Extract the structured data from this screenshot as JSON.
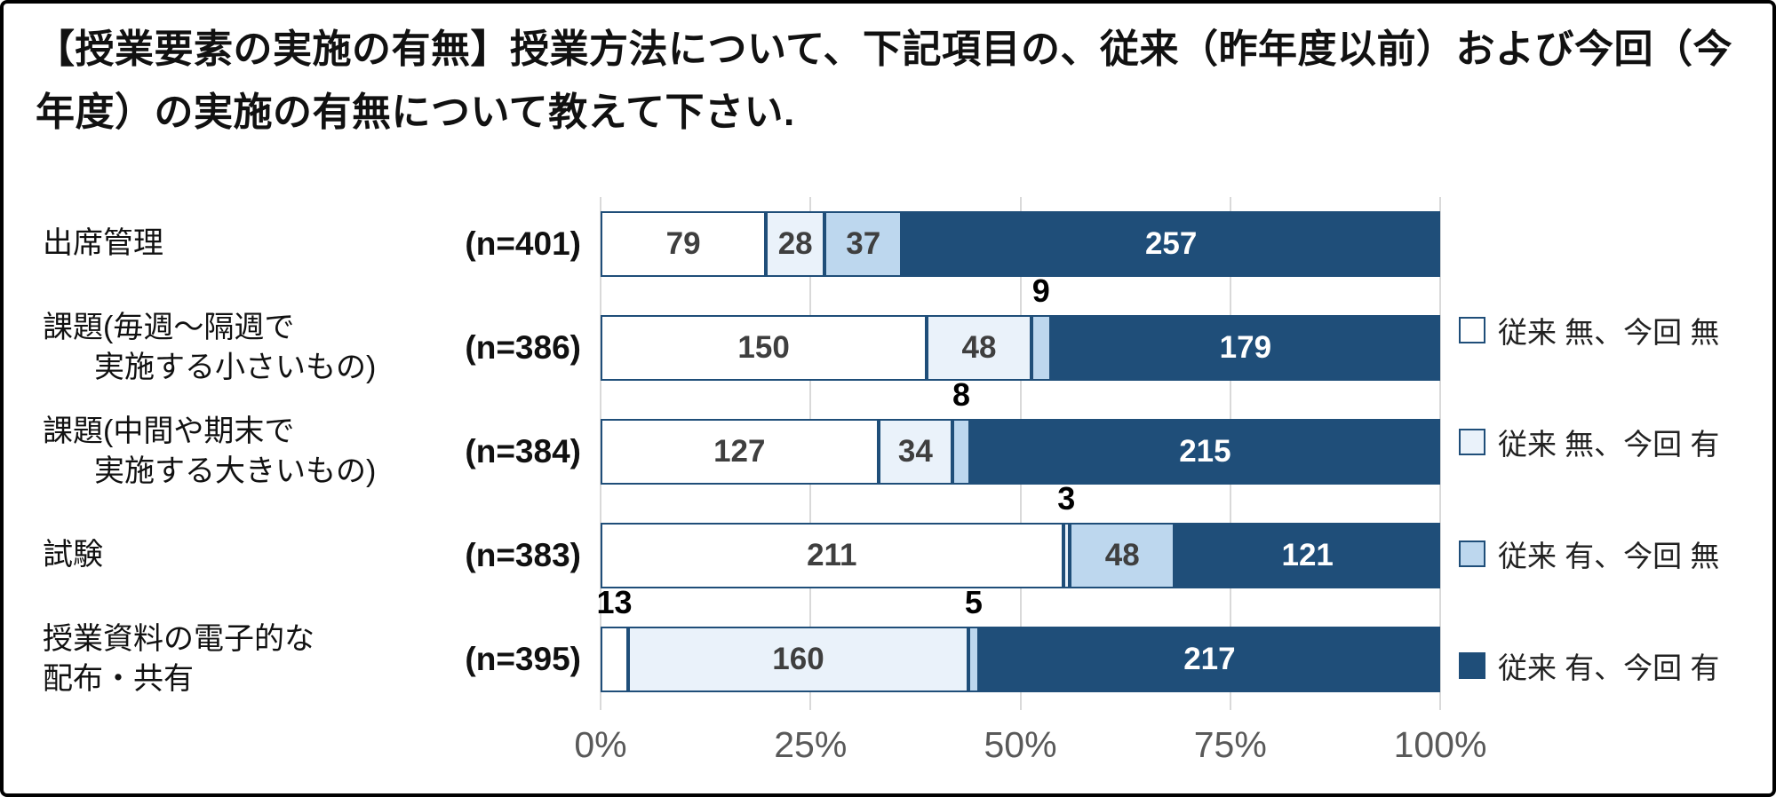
{
  "title": "【授業要素の実施の有無】授業方法について、下記項目の、従来（昨年度以前）および今回（今年度）の実施の有無について教えて下さい.",
  "chart_data": {
    "type": "bar",
    "orientation": "horizontal",
    "stacked_percent": true,
    "title": "授業要素の実施の有無",
    "xlabel": "",
    "ylabel": "",
    "xlim": [
      0,
      100
    ],
    "grid": "vertical",
    "legend_position": "right",
    "x_ticks": [
      {
        "label": "0%",
        "value": 0
      },
      {
        "label": "25%",
        "value": 25
      },
      {
        "label": "50%",
        "value": 50
      },
      {
        "label": "75%",
        "value": 75
      },
      {
        "label": "100%",
        "value": 100
      }
    ],
    "series": [
      {
        "name": "従来 無、今回 無",
        "color": "#FFFFFF"
      },
      {
        "name": "従来 無、今回 有",
        "color": "#EAF2FA"
      },
      {
        "name": "従来 有、今回 無",
        "color": "#BDD7EE"
      },
      {
        "name": "従来 有、今回 有",
        "color": "#1F4E79"
      }
    ],
    "border_color": "#1F4E79",
    "gridline_color": "#d9d9d9",
    "rows": [
      {
        "label_lines": [
          "出席管理"
        ],
        "indent2": false,
        "n": "(n=401)",
        "values": [
          79,
          28,
          37,
          257
        ]
      },
      {
        "label_lines": [
          "課題(毎週～隔週で",
          "実施する小さいもの)"
        ],
        "indent2": true,
        "n": "(n=386)",
        "values": [
          150,
          48,
          9,
          179
        ]
      },
      {
        "label_lines": [
          "課題(中間や期末で",
          "実施する大きいもの)"
        ],
        "indent2": true,
        "n": "(n=384)",
        "values": [
          127,
          34,
          8,
          215
        ]
      },
      {
        "label_lines": [
          "試験"
        ],
        "indent2": false,
        "n": "(n=383)",
        "values": [
          211,
          3,
          48,
          121
        ]
      },
      {
        "label_lines": [
          "授業資料の電子的な",
          "配布・共有"
        ],
        "indent2": false,
        "n": "(n=395)",
        "values": [
          13,
          160,
          5,
          217
        ]
      }
    ]
  }
}
